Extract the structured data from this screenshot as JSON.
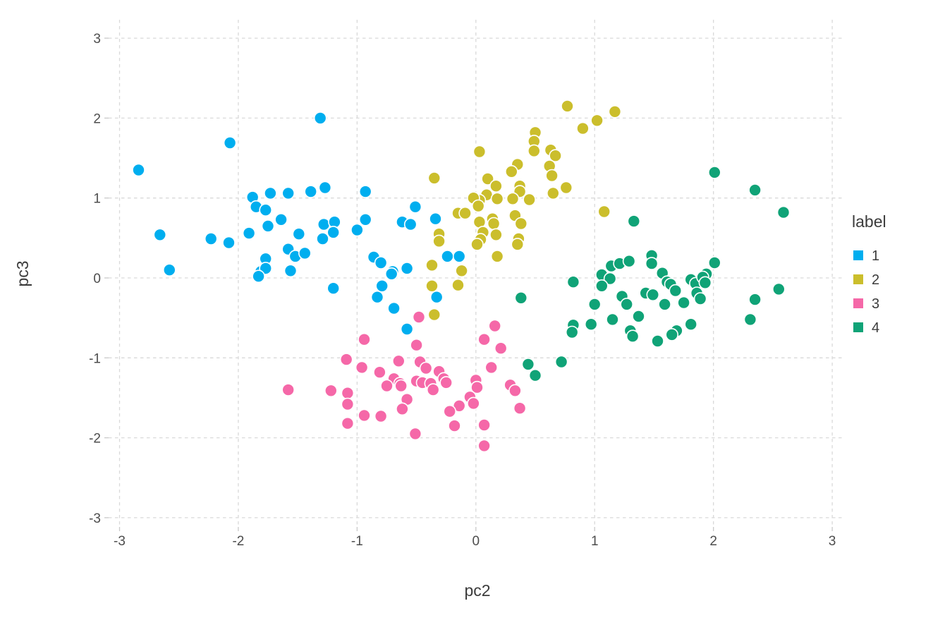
{
  "chart_data": {
    "type": "scatter",
    "title": "",
    "xlabel": "pc2",
    "ylabel": "pc3",
    "xlim": [
      -3.1,
      3.1
    ],
    "ylim": [
      -3.25,
      3.25
    ],
    "x_ticks": [
      -3,
      -2,
      -1,
      0,
      1,
      2,
      3
    ],
    "y_ticks": [
      -3,
      -2,
      -1,
      0,
      1,
      2,
      3
    ],
    "grid": "dashed",
    "legend_position": "right",
    "legend_title": "label",
    "series": [
      {
        "name": "1",
        "color": "#00AEEF",
        "points": [
          [
            -1.31,
            2.0
          ],
          [
            -2.07,
            1.69
          ],
          [
            -2.84,
            1.35
          ],
          [
            -1.88,
            1.01
          ],
          [
            -1.73,
            1.06
          ],
          [
            -1.58,
            1.06
          ],
          [
            -1.39,
            1.08
          ],
          [
            -1.27,
            1.13
          ],
          [
            -0.93,
            1.08
          ],
          [
            -1.85,
            0.89
          ],
          [
            -1.77,
            0.85
          ],
          [
            -1.64,
            0.73
          ],
          [
            -1.91,
            0.56
          ],
          [
            -1.75,
            0.65
          ],
          [
            -1.28,
            0.67
          ],
          [
            -1.19,
            0.7
          ],
          [
            -1.2,
            0.57
          ],
          [
            -1.29,
            0.49
          ],
          [
            -1.49,
            0.55
          ],
          [
            -1.58,
            0.36
          ],
          [
            -1.52,
            0.27
          ],
          [
            -1.44,
            0.31
          ],
          [
            -1.77,
            0.24
          ],
          [
            -1.81,
            0.08
          ],
          [
            -1.77,
            0.12
          ],
          [
            -2.66,
            0.54
          ],
          [
            -2.23,
            0.49
          ],
          [
            -2.08,
            0.44
          ],
          [
            -2.58,
            0.1
          ],
          [
            -0.51,
            0.89
          ],
          [
            -0.93,
            0.73
          ],
          [
            -1.0,
            0.6
          ],
          [
            -0.62,
            0.7
          ],
          [
            -0.55,
            0.67
          ],
          [
            -0.34,
            0.74
          ],
          [
            -0.86,
            0.26
          ],
          [
            -0.8,
            0.19
          ],
          [
            -0.7,
            0.08
          ],
          [
            -0.58,
            0.12
          ],
          [
            -0.24,
            0.27
          ],
          [
            -0.14,
            0.27
          ],
          [
            -1.83,
            0.02
          ],
          [
            -1.56,
            0.09
          ],
          [
            -1.2,
            -0.13
          ],
          [
            -0.71,
            0.05
          ],
          [
            -0.79,
            -0.1
          ],
          [
            -0.83,
            -0.24
          ],
          [
            -0.69,
            -0.38
          ],
          [
            -0.33,
            -0.24
          ],
          [
            -0.58,
            -0.64
          ]
        ]
      },
      {
        "name": "2",
        "color": "#CBBE2C",
        "points": [
          [
            0.77,
            2.15
          ],
          [
            1.17,
            2.08
          ],
          [
            1.02,
            1.97
          ],
          [
            0.9,
            1.87
          ],
          [
            0.5,
            1.82
          ],
          [
            0.49,
            1.71
          ],
          [
            0.49,
            1.59
          ],
          [
            0.63,
            1.6
          ],
          [
            0.67,
            1.53
          ],
          [
            0.03,
            1.58
          ],
          [
            0.35,
            1.42
          ],
          [
            0.3,
            1.33
          ],
          [
            0.62,
            1.4
          ],
          [
            0.64,
            1.28
          ],
          [
            -0.35,
            1.25
          ],
          [
            0.1,
            1.24
          ],
          [
            0.17,
            1.15
          ],
          [
            0.37,
            1.15
          ],
          [
            0.37,
            1.08
          ],
          [
            0.65,
            1.06
          ],
          [
            0.76,
            1.13
          ],
          [
            0.09,
            1.04
          ],
          [
            0.03,
            0.97
          ],
          [
            -0.02,
            1.0
          ],
          [
            0.18,
            0.99
          ],
          [
            0.31,
            0.99
          ],
          [
            0.45,
            0.98
          ],
          [
            0.02,
            0.9
          ],
          [
            -0.15,
            0.81
          ],
          [
            -0.09,
            0.81
          ],
          [
            0.03,
            0.7
          ],
          [
            0.14,
            0.74
          ],
          [
            0.15,
            0.68
          ],
          [
            0.33,
            0.78
          ],
          [
            0.38,
            0.68
          ],
          [
            0.06,
            0.57
          ],
          [
            0.17,
            0.54
          ],
          [
            0.04,
            0.48
          ],
          [
            0.01,
            0.42
          ],
          [
            0.36,
            0.49
          ],
          [
            0.35,
            0.42
          ],
          [
            0.18,
            0.27
          ],
          [
            -0.31,
            0.55
          ],
          [
            -0.31,
            0.46
          ],
          [
            -0.37,
            0.16
          ],
          [
            -0.12,
            0.09
          ],
          [
            1.08,
            0.83
          ],
          [
            -0.37,
            -0.1
          ],
          [
            -0.15,
            -0.09
          ],
          [
            -0.35,
            -0.46
          ]
        ]
      },
      {
        "name": "3",
        "color": "#F568A8",
        "points": [
          [
            -0.48,
            -0.49
          ],
          [
            0.16,
            -0.6
          ],
          [
            0.07,
            -0.77
          ],
          [
            0.21,
            -0.88
          ],
          [
            -0.94,
            -0.77
          ],
          [
            -0.5,
            -0.84
          ],
          [
            -1.09,
            -1.02
          ],
          [
            -0.65,
            -1.04
          ],
          [
            -0.96,
            -1.12
          ],
          [
            -0.81,
            -1.18
          ],
          [
            -0.47,
            -1.05
          ],
          [
            -0.42,
            -1.13
          ],
          [
            -0.31,
            -1.17
          ],
          [
            -0.69,
            -1.26
          ],
          [
            -0.75,
            -1.35
          ],
          [
            -0.64,
            -1.32
          ],
          [
            -0.63,
            -1.35
          ],
          [
            -0.5,
            -1.29
          ],
          [
            -0.45,
            -1.31
          ],
          [
            -0.38,
            -1.32
          ],
          [
            -0.36,
            -1.4
          ],
          [
            -0.27,
            -1.26
          ],
          [
            -0.25,
            -1.31
          ],
          [
            0.0,
            -1.28
          ],
          [
            0.01,
            -1.37
          ],
          [
            -0.05,
            -1.49
          ],
          [
            -0.02,
            -1.57
          ],
          [
            -0.14,
            -1.6
          ],
          [
            -0.22,
            -1.67
          ],
          [
            0.29,
            -1.34
          ],
          [
            0.33,
            -1.41
          ],
          [
            0.37,
            -1.63
          ],
          [
            -0.94,
            -1.72
          ],
          [
            -0.8,
            -1.73
          ],
          [
            -0.51,
            -1.95
          ],
          [
            -0.18,
            -1.85
          ],
          [
            0.07,
            -1.84
          ],
          [
            0.07,
            -2.1
          ],
          [
            -1.58,
            -1.4
          ],
          [
            -1.22,
            -1.41
          ],
          [
            -1.08,
            -1.44
          ],
          [
            -1.08,
            -1.58
          ],
          [
            -1.08,
            -1.82
          ],
          [
            -0.58,
            -1.52
          ],
          [
            -0.62,
            -1.64
          ],
          [
            0.13,
            -1.12
          ]
        ]
      },
      {
        "name": "4",
        "color": "#10A377",
        "points": [
          [
            2.01,
            1.32
          ],
          [
            2.35,
            1.1
          ],
          [
            2.59,
            0.82
          ],
          [
            1.33,
            0.71
          ],
          [
            0.82,
            -0.05
          ],
          [
            0.38,
            -0.25
          ],
          [
            1.0,
            -0.33
          ],
          [
            0.97,
            -0.58
          ],
          [
            0.82,
            -0.59
          ],
          [
            0.81,
            -0.68
          ],
          [
            0.44,
            -1.08
          ],
          [
            0.5,
            -1.22
          ],
          [
            0.72,
            -1.05
          ],
          [
            1.14,
            0.15
          ],
          [
            1.21,
            0.18
          ],
          [
            1.29,
            0.21
          ],
          [
            1.48,
            0.28
          ],
          [
            1.48,
            0.18
          ],
          [
            1.57,
            0.06
          ],
          [
            2.01,
            0.19
          ],
          [
            1.94,
            0.05
          ],
          [
            1.06,
            0.04
          ],
          [
            1.13,
            -0.01
          ],
          [
            1.06,
            -0.1
          ],
          [
            1.23,
            -0.23
          ],
          [
            1.27,
            -0.33
          ],
          [
            1.15,
            -0.52
          ],
          [
            1.37,
            -0.48
          ],
          [
            1.3,
            -0.66
          ],
          [
            1.32,
            -0.73
          ],
          [
            1.43,
            -0.19
          ],
          [
            1.49,
            -0.21
          ],
          [
            1.61,
            -0.05
          ],
          [
            1.64,
            -0.08
          ],
          [
            1.68,
            -0.16
          ],
          [
            1.59,
            -0.33
          ],
          [
            1.75,
            -0.31
          ],
          [
            1.81,
            -0.02
          ],
          [
            1.85,
            -0.07
          ],
          [
            1.91,
            0.01
          ],
          [
            1.93,
            -0.06
          ],
          [
            1.86,
            -0.19
          ],
          [
            1.89,
            -0.26
          ],
          [
            1.81,
            -0.58
          ],
          [
            1.69,
            -0.66
          ],
          [
            1.65,
            -0.71
          ],
          [
            1.53,
            -0.79
          ],
          [
            2.35,
            -0.27
          ],
          [
            2.31,
            -0.52
          ],
          [
            2.55,
            -0.14
          ]
        ]
      }
    ]
  },
  "legend": {
    "title": "label",
    "items": [
      {
        "label": "1",
        "color": "#00AEEF"
      },
      {
        "label": "2",
        "color": "#CBBE2C"
      },
      {
        "label": "3",
        "color": "#F568A8"
      },
      {
        "label": "4",
        "color": "#10A377"
      }
    ]
  },
  "style": {
    "background": "#ffffff",
    "gridline_color": "#d9d9d9",
    "tick_color": "#c9c9c9",
    "tick_text_color": "#4d4d4d",
    "axis_title_color": "#3c3c3c",
    "point_stroke": "#ffffff"
  }
}
